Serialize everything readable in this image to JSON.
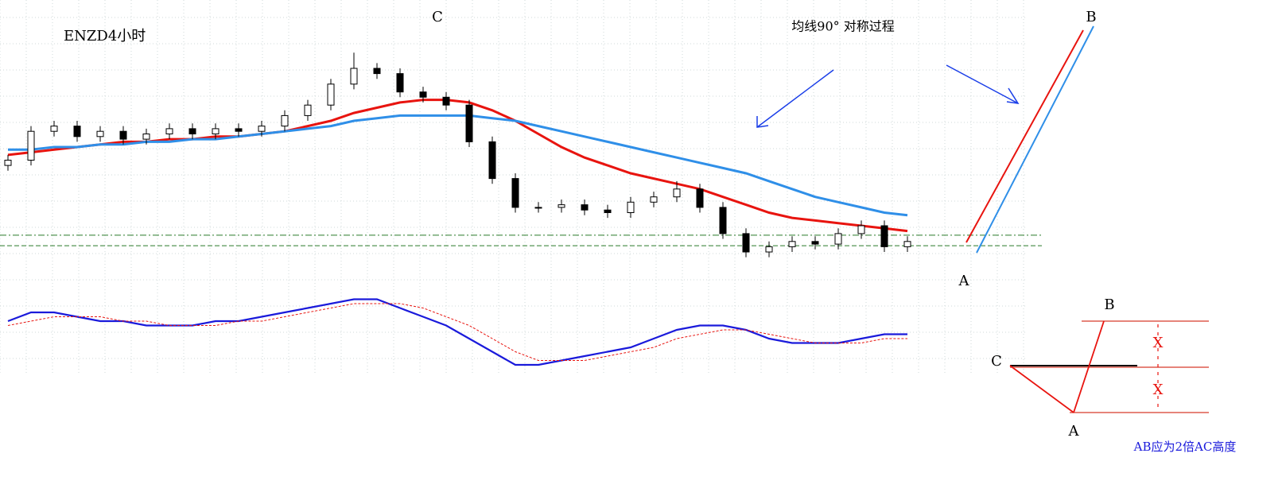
{
  "chart_data": {
    "type": "candlestick",
    "title": "ENZD4小时",
    "open": [
      43,
      45,
      56,
      58,
      54,
      56,
      53,
      55,
      57,
      55,
      57,
      56,
      58,
      62,
      66,
      74,
      80,
      78,
      71,
      69,
      66,
      52,
      38,
      27,
      27,
      28,
      26,
      25,
      29,
      31,
      34,
      27,
      17,
      10,
      12,
      14,
      13,
      17,
      20,
      12
    ],
    "high": [
      47,
      58,
      60,
      60,
      58,
      58,
      57,
      59,
      59,
      59,
      59,
      60,
      64,
      68,
      76,
      86,
      82,
      80,
      73,
      71,
      68,
      54,
      40,
      29,
      30,
      30,
      28,
      31,
      33,
      37,
      36,
      29,
      19,
      14,
      16,
      16,
      19,
      22,
      22,
      16
    ],
    "low": [
      41,
      43,
      54,
      52,
      52,
      51,
      51,
      53,
      53,
      53,
      54,
      54,
      56,
      60,
      64,
      72,
      76,
      69,
      67,
      64,
      50,
      36,
      25,
      25,
      25,
      24,
      23,
      23,
      27,
      29,
      25,
      15,
      8,
      8,
      10,
      11,
      11,
      15,
      10,
      10
    ],
    "close": [
      45,
      56,
      58,
      54,
      56,
      53,
      55,
      57,
      55,
      57,
      56,
      58,
      62,
      66,
      74,
      80,
      78,
      71,
      69,
      66,
      52,
      38,
      27,
      27,
      28,
      26,
      25,
      29,
      31,
      34,
      27,
      17,
      10,
      12,
      14,
      13,
      17,
      20,
      12,
      14
    ],
    "ylim": [
      0,
      100
    ],
    "series": [
      {
        "color": "#e8140f",
        "values": [
          47,
          48,
          49,
          50,
          51,
          52,
          52,
          53,
          53,
          54,
          54,
          55,
          56,
          58,
          60,
          63,
          65,
          67,
          68,
          68,
          67,
          64,
          60,
          55,
          50,
          46,
          43,
          40,
          38,
          36,
          34,
          31,
          28,
          25,
          23,
          22,
          21,
          20,
          19,
          18
        ]
      },
      {
        "color": "#2f8fe8",
        "values": [
          49,
          49,
          50,
          50,
          51,
          51,
          52,
          52,
          53,
          53,
          54,
          55,
          56,
          57,
          58,
          60,
          61,
          62,
          62,
          62,
          62,
          61,
          60,
          58,
          56,
          54,
          52,
          50,
          48,
          46,
          44,
          42,
          40,
          37,
          34,
          31,
          29,
          27,
          25,
          24
        ]
      }
    ],
    "levels": [
      16.4,
      12.4
    ],
    "indicator": {
      "ylim": [
        -10,
        10
      ],
      "series": [
        {
          "color": "#1a1adb",
          "values": [
            2,
            4,
            4,
            3,
            2,
            2,
            1,
            1,
            1,
            2,
            2,
            3,
            4,
            5,
            6,
            7,
            7,
            5,
            3,
            1,
            -2,
            -5,
            -8,
            -8,
            -7,
            -6,
            -5,
            -4,
            -2,
            0,
            1,
            1,
            0,
            -2,
            -3,
            -3,
            -3,
            -2,
            -1,
            -1
          ]
        },
        {
          "color": "#e8140f",
          "values": [
            1,
            2,
            3,
            3,
            3,
            2,
            2,
            1,
            1,
            1,
            2,
            2,
            3,
            4,
            5,
            6,
            6,
            6,
            5,
            3,
            1,
            -2,
            -5,
            -7,
            -7,
            -7,
            -6,
            -5,
            -4,
            -2,
            -1,
            0,
            0,
            -1,
            -2,
            -3,
            -3,
            -3,
            -2,
            -2
          ]
        }
      ]
    },
    "annotations": {
      "peak": "C",
      "note": "均线90° 对称过程",
      "target": "B",
      "start": "A"
    },
    "inset": {
      "b": "B",
      "c": "C",
      "a": "A",
      "x1": "X",
      "x2": "X",
      "caption": "AB应为2倍AC高度"
    }
  }
}
